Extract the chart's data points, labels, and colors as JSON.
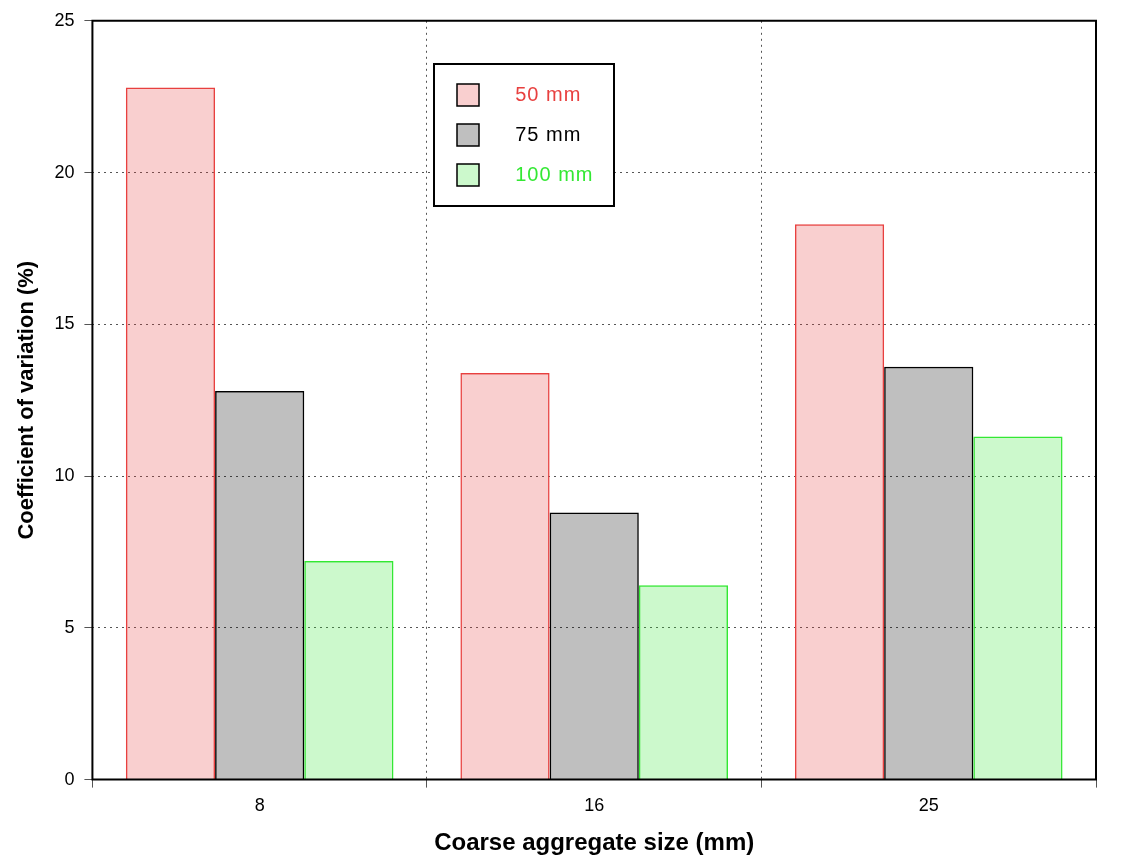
{
  "chart_data": {
    "type": "bar",
    "xlabel": "Coarse aggregate size (mm)",
    "ylabel": "Coefficient of variation (%)",
    "categories": [
      "8",
      "16",
      "25"
    ],
    "series": [
      {
        "name": "50 mm",
        "color": "#e8403f",
        "values": [
          22.8,
          13.4,
          18.3
        ]
      },
      {
        "name": "75 mm",
        "color": "#000000",
        "values": [
          12.8,
          8.8,
          13.6
        ]
      },
      {
        "name": "100 mm",
        "color": "#33e833",
        "values": [
          7.2,
          6.4,
          11.3
        ]
      }
    ],
    "ylim": [
      0,
      25
    ],
    "yticks": [
      0,
      5,
      10,
      15,
      20,
      25
    ],
    "grid": true,
    "legend": "top"
  }
}
